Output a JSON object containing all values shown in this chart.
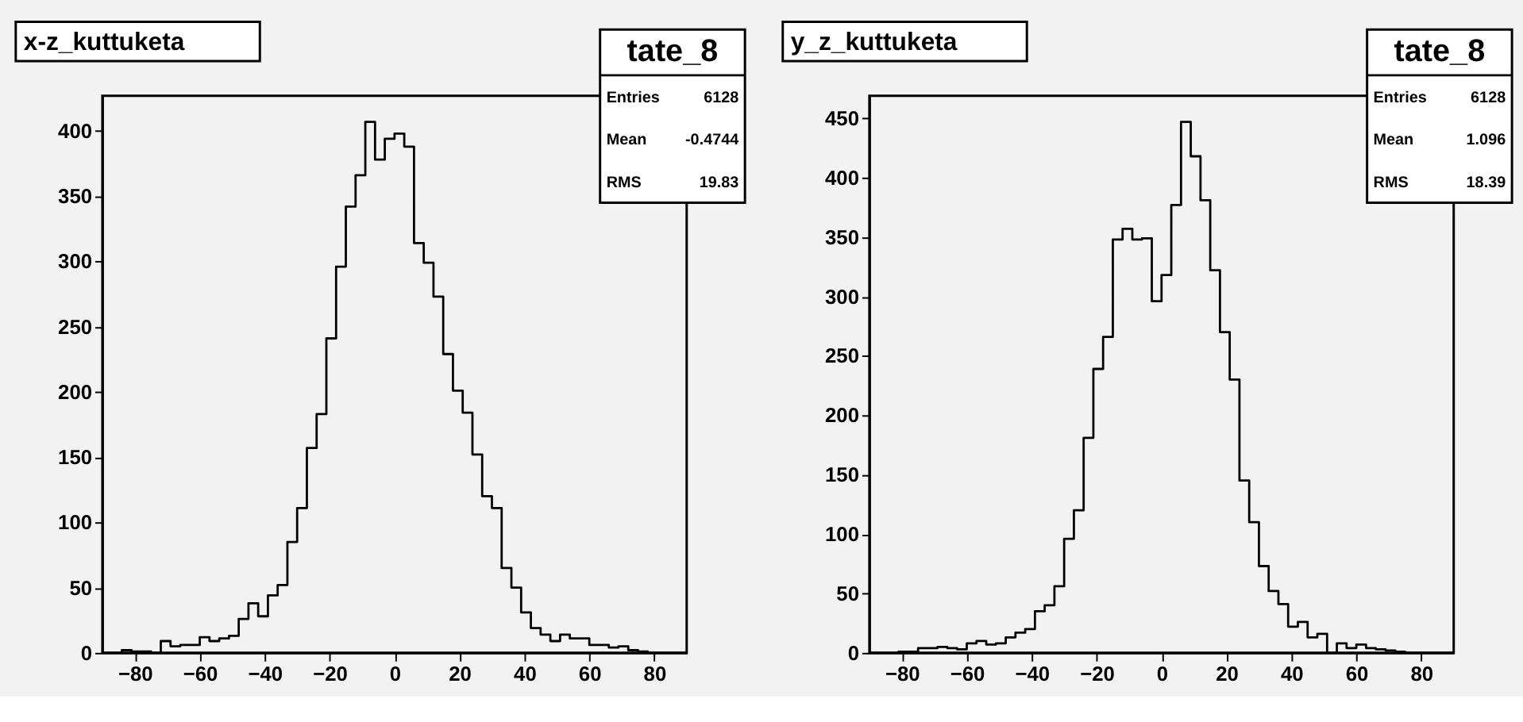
{
  "chart_data": [
    {
      "type": "histogram",
      "title": "x-z_kuttuketa",
      "annotations": [
        "tate_8",
        "Entries",
        "6128",
        "Mean",
        "-0.4744",
        "RMS",
        "19.83"
      ],
      "color": "#000000",
      "bins": [
        -90,
        -87,
        -84,
        -81,
        -78,
        -75,
        -72,
        -69,
        -66,
        -63,
        -60,
        -57,
        -54,
        -51,
        -48,
        -45,
        -42,
        -39,
        -36,
        -33,
        -30,
        -27,
        -24,
        -21,
        -18,
        -15,
        -12,
        -9,
        -6,
        -3,
        0,
        3,
        6,
        9,
        12,
        15,
        18,
        21,
        24,
        27,
        30,
        33,
        36,
        39,
        42,
        45,
        48,
        51,
        54,
        57,
        60,
        63,
        66,
        69,
        72,
        75,
        78,
        81,
        84,
        87,
        90
      ],
      "values": [
        0,
        0,
        2,
        1,
        1,
        0,
        9,
        5,
        6,
        6,
        12,
        9,
        11,
        13,
        26,
        38,
        28,
        44,
        52,
        85,
        111,
        157,
        183,
        241,
        296,
        342,
        366,
        407,
        378,
        394,
        398,
        388,
        314,
        299,
        273,
        229,
        201,
        184,
        152,
        120,
        111,
        65,
        50,
        31,
        19,
        14,
        9,
        14,
        11,
        11,
        6,
        6,
        4,
        5,
        2,
        1,
        0,
        0,
        0,
        0
      ],
      "xlim": [
        -90,
        90
      ],
      "ylim": [
        0,
        427
      ],
      "xticks": [
        -80,
        -60,
        -40,
        -20,
        0,
        20,
        40,
        60,
        80
      ],
      "yticks": [
        0,
        50,
        100,
        150,
        200,
        250,
        300,
        350,
        400
      ],
      "grid": false
    },
    {
      "type": "histogram",
      "title": "y_z_kuttuketa",
      "annotations": [
        "tate_8",
        "Entries",
        "6128",
        "Mean",
        "1.096",
        "RMS",
        "18.39"
      ],
      "color": "#000000",
      "bins": [
        -90,
        -87,
        -84,
        -81,
        -78,
        -75,
        -72,
        -69,
        -66,
        -63,
        -60,
        -57,
        -54,
        -51,
        -48,
        -45,
        -42,
        -39,
        -36,
        -33,
        -30,
        -27,
        -24,
        -21,
        -18,
        -15,
        -12,
        -9,
        -6,
        -3,
        0,
        3,
        6,
        9,
        12,
        15,
        18,
        21,
        24,
        27,
        30,
        33,
        36,
        39,
        42,
        45,
        48,
        51,
        54,
        57,
        60,
        63,
        66,
        69,
        72,
        75,
        78,
        81,
        84,
        87,
        90
      ],
      "values": [
        0,
        0,
        0,
        1,
        1,
        4,
        4,
        5,
        4,
        3,
        8,
        10,
        7,
        8,
        13,
        17,
        20,
        35,
        40,
        56,
        96,
        120,
        181,
        239,
        266,
        348,
        357,
        348,
        349,
        296,
        318,
        377,
        447,
        418,
        381,
        322,
        270,
        230,
        145,
        110,
        73,
        52,
        41,
        22,
        26,
        13,
        16,
        0,
        8,
        4,
        7,
        4,
        3,
        2,
        1,
        0,
        0,
        0,
        0,
        0
      ],
      "xlim": [
        -90,
        90
      ],
      "ylim": [
        0,
        469
      ],
      "xticks": [
        -80,
        -60,
        -40,
        -20,
        0,
        20,
        40,
        60,
        80
      ],
      "yticks": [
        0,
        50,
        100,
        150,
        200,
        250,
        300,
        350,
        400,
        450
      ],
      "grid": false
    }
  ]
}
